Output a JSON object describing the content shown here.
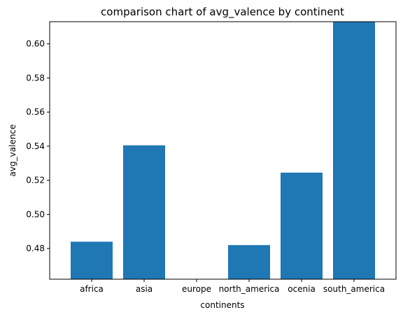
{
  "chart_data": {
    "type": "bar",
    "title": "comparison chart of avg_valence by continent",
    "xlabel": "continents",
    "ylabel": "avg_valence",
    "categories": [
      "africa",
      "asia",
      "europe",
      "north_america",
      "ocenia",
      "south_america"
    ],
    "values": [
      0.484,
      0.5405,
      0.462,
      0.482,
      0.5245,
      0.613
    ],
    "ylim": [
      0.462,
      0.613
    ],
    "yticks": [
      "0.48",
      "0.50",
      "0.52",
      "0.54",
      "0.56",
      "0.58",
      "0.60"
    ],
    "grid": false,
    "legend": "none",
    "bar_color": "#1f77b4"
  }
}
